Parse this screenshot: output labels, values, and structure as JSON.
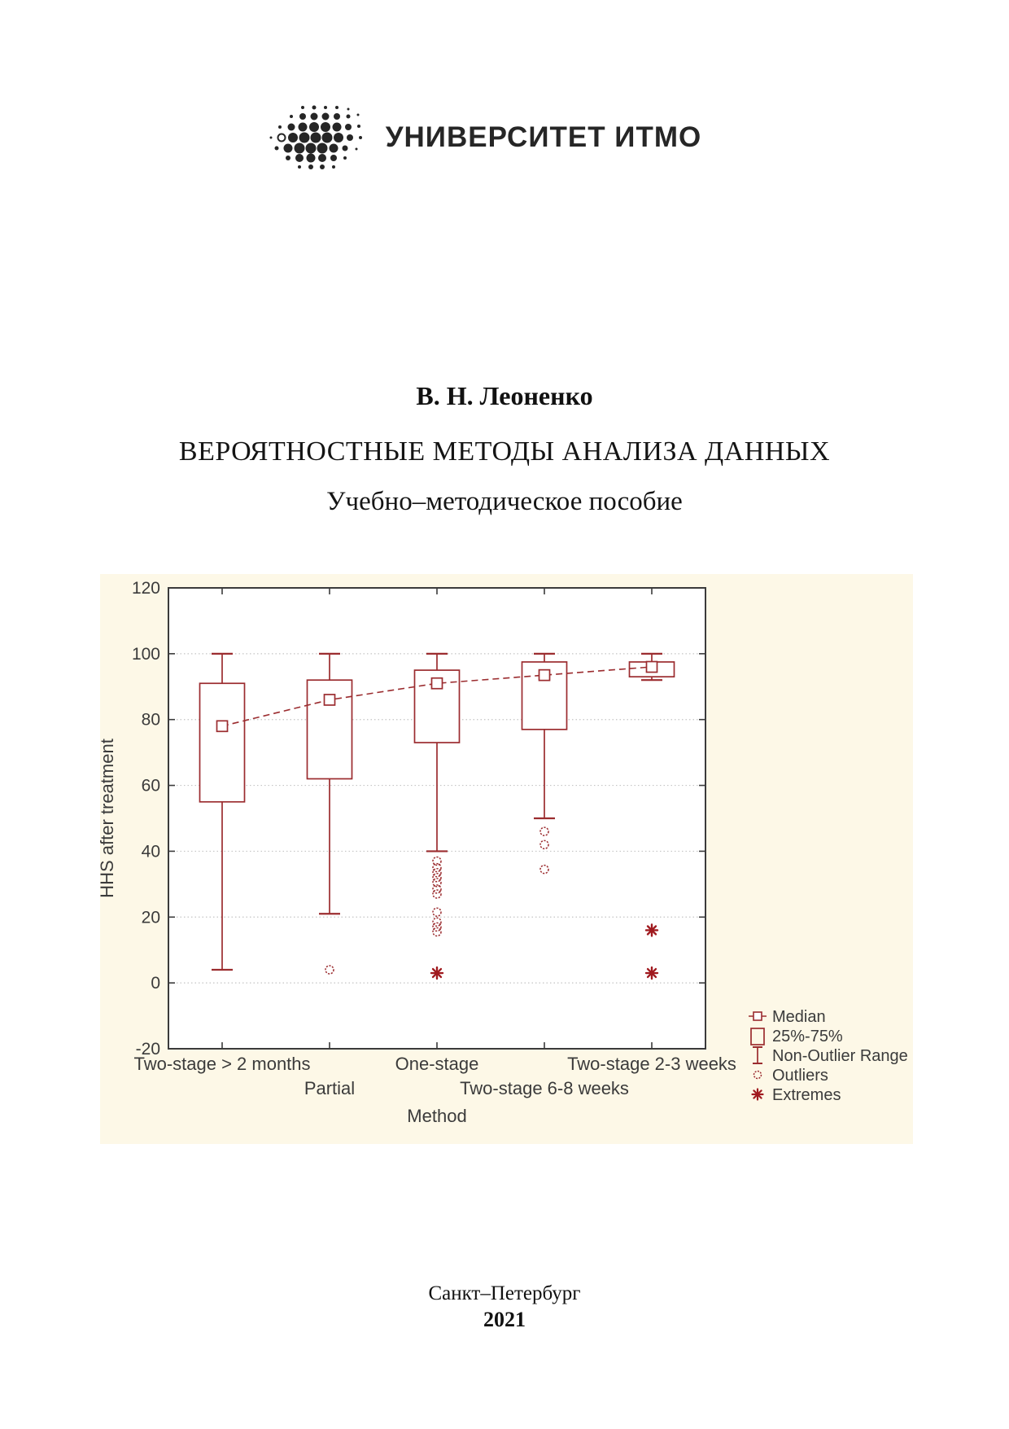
{
  "page": {
    "logo": {
      "text": "УНИВЕРСИТЕТ ИТМО"
    },
    "author": "В. Н. Леоненко",
    "title": "ВЕРОЯТНОСТНЫЕ МЕТОДЫ АНАЛИЗА ДАННЫХ",
    "subtitle": "Учебно–методическое пособие",
    "footer": {
      "city": "Санкт–Петербург",
      "year": "2021"
    }
  },
  "chart_data": {
    "type": "box",
    "xlabel": "Method",
    "ylabel": "HHS after treatment",
    "ylim": [
      -20,
      120
    ],
    "ytick_step": 20,
    "grid": "horizontal-dotted",
    "legend_position": "right-bottom",
    "categories": [
      "Two-stage > 2 months",
      "Partial",
      "One-stage",
      "Two-stage 6-8 weeks",
      "Two-stage 2-3 weeks"
    ],
    "category_label_rows": [
      0,
      1,
      0,
      1,
      0
    ],
    "boxes": [
      {
        "category": "Two-stage > 2 months",
        "median": 78,
        "q1": 55,
        "q3": 91,
        "whisker_low": 4,
        "whisker_high": 100,
        "outliers": [],
        "extremes": []
      },
      {
        "category": "Partial",
        "median": 86,
        "q1": 62,
        "q3": 92,
        "whisker_low": 21,
        "whisker_high": 100,
        "outliers": [
          4
        ],
        "extremes": []
      },
      {
        "category": "One-stage",
        "median": 91,
        "q1": 73,
        "q3": 95,
        "whisker_low": 40,
        "whisker_high": 100,
        "outliers": [
          37,
          35,
          33.5,
          32,
          30.5,
          28.5,
          27,
          21.5,
          18.5,
          17,
          15.5
        ],
        "extremes": [
          3
        ]
      },
      {
        "category": "Two-stage 6-8 weeks",
        "median": 93.5,
        "q1": 77,
        "q3": 97.5,
        "whisker_low": 50,
        "whisker_high": 100,
        "outliers": [
          46,
          42,
          34.5
        ],
        "extremes": []
      },
      {
        "category": "Two-stage 2-3 weeks",
        "median": 96,
        "q1": 93,
        "q3": 97.5,
        "whisker_low": 92,
        "whisker_high": 100,
        "outliers": [],
        "extremes": [
          16,
          3
        ]
      }
    ],
    "median_line": [
      78,
      86,
      91,
      93.5,
      96
    ],
    "legend": [
      {
        "marker": "median-square",
        "label": "Median"
      },
      {
        "marker": "box",
        "label": "25%-75%"
      },
      {
        "marker": "whisker",
        "label": "Non-Outlier Range"
      },
      {
        "marker": "circle",
        "label": "Outliers"
      },
      {
        "marker": "asterisk",
        "label": "Extremes"
      }
    ],
    "colors": {
      "series": "#9b2c2f",
      "extremes": "#a01a1f",
      "panel_bg": "#fdf8e7",
      "plot_bg": "#ffffff",
      "grid": "#c4c4c4",
      "axis": "#3b3b3b",
      "text": "#3b3b3b"
    }
  }
}
